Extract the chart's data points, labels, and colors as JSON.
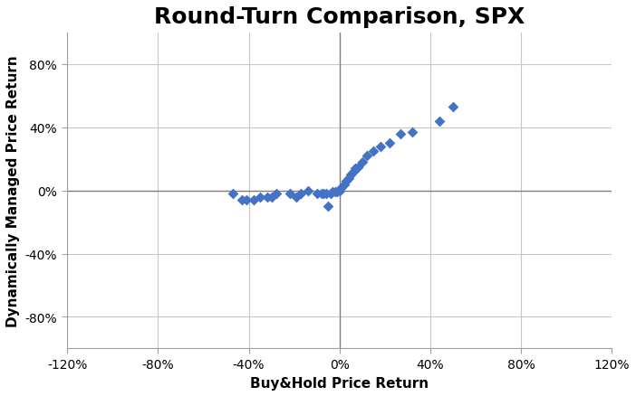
{
  "title": "Round-Turn Comparison, SPX",
  "xlabel": "Buy&Hold Price Return",
  "ylabel": "Dynamically Managed Price Return",
  "xlim": [
    -1.2,
    1.2
  ],
  "ylim": [
    -1.0,
    1.0
  ],
  "xticks": [
    -1.2,
    -0.8,
    -0.4,
    0.0,
    0.4,
    0.8,
    1.2
  ],
  "yticks": [
    -0.8,
    -0.4,
    0.0,
    0.4,
    0.8
  ],
  "xtick_labels": [
    "-120%",
    "-80%",
    "-40%",
    "0%",
    "40%",
    "80%",
    "120%"
  ],
  "ytick_labels": [
    "-80%",
    "-40%",
    "0%",
    "40%",
    "80%"
  ],
  "marker_color": "#4472C4",
  "marker_size": 36,
  "scatter_x": [
    -0.47,
    -0.43,
    -0.41,
    -0.38,
    -0.35,
    -0.32,
    -0.3,
    -0.28,
    -0.22,
    -0.19,
    -0.17,
    -0.14,
    -0.1,
    -0.08,
    -0.07,
    -0.06,
    -0.05,
    -0.04,
    -0.03,
    -0.02,
    -0.01,
    0.0,
    0.01,
    0.02,
    0.03,
    0.04,
    0.05,
    0.06,
    0.07,
    0.08,
    0.1,
    0.12,
    0.15,
    0.18,
    0.22,
    0.27,
    0.32,
    0.44,
    0.5
  ],
  "scatter_y": [
    -0.02,
    -0.06,
    -0.06,
    -0.06,
    -0.04,
    -0.04,
    -0.04,
    -0.02,
    -0.02,
    -0.04,
    -0.02,
    0.0,
    -0.02,
    -0.02,
    -0.02,
    -0.02,
    -0.1,
    -0.02,
    -0.01,
    -0.01,
    -0.01,
    0.0,
    0.02,
    0.04,
    0.06,
    0.08,
    0.1,
    0.12,
    0.14,
    0.15,
    0.18,
    0.22,
    0.25,
    0.28,
    0.3,
    0.36,
    0.37,
    0.44,
    0.53
  ],
  "grid_color": "#C8C8C8",
  "background_color": "#FFFFFF",
  "title_fontsize": 18,
  "label_fontsize": 11,
  "tick_fontsize": 10,
  "zero_line_color": "#808080",
  "frame_color": "#A0A0A0"
}
